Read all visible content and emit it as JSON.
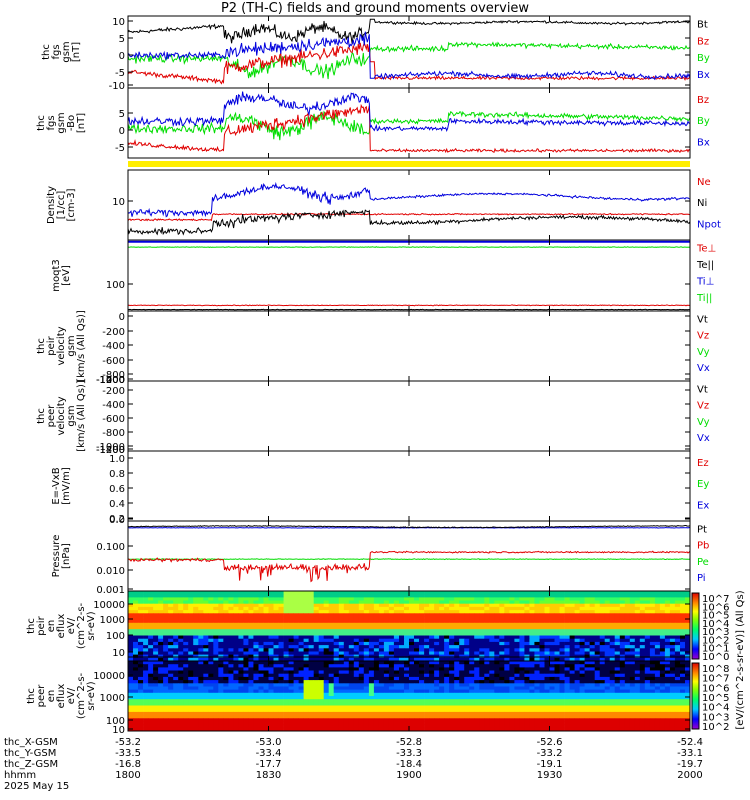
{
  "title": "P2 (TH-C) fields and ground moments overview",
  "colors": {
    "black": "#000000",
    "red": "#e00000",
    "green": "#00dd00",
    "blue": "#0000dd",
    "yellow": "#ffee00"
  },
  "chart_data": [
    {
      "type": "line",
      "id": "fgs",
      "ylabel": [
        "thc",
        "fgs",
        "gsm",
        "[nT]"
      ],
      "ylim": [
        -10,
        12
      ],
      "yticks": [
        "10",
        "5",
        "0",
        "-5",
        "-10"
      ],
      "series": [
        {
          "name": "Bt",
          "color": "#000000"
        },
        {
          "name": "Bz",
          "color": "#e00000"
        },
        {
          "name": "By",
          "color": "#00dd00"
        },
        {
          "name": "Bx",
          "color": "#0000dd"
        }
      ]
    },
    {
      "type": "line",
      "id": "fgs_dsl",
      "ylabel": [
        "thc",
        "fgs",
        "gsm",
        "-Bo",
        "[nT]"
      ],
      "ylim": [
        -9,
        10
      ],
      "yticks": [
        "5",
        "0",
        "-5"
      ],
      "series": [
        {
          "name": "Bz",
          "color": "#e00000"
        },
        {
          "name": "By",
          "color": "#00dd00"
        },
        {
          "name": "Bx",
          "color": "#0000dd"
        }
      ]
    },
    {
      "type": "line",
      "id": "density",
      "ylabel": [
        "Density",
        "[1/cc]",
        "[cm-3]"
      ],
      "ylim": "log",
      "yticks": [
        "10"
      ],
      "series": [
        {
          "name": "Ne",
          "color": "#e00000"
        },
        {
          "name": "Ni",
          "color": "#000000"
        },
        {
          "name": "Npot",
          "color": "#0000dd"
        }
      ]
    },
    {
      "type": "line",
      "id": "temp",
      "ylabel": [
        "moqt3",
        "[eV]"
      ],
      "yticks": [
        "100"
      ],
      "series": [
        {
          "name": "Te⊥",
          "color": "#e00000"
        },
        {
          "name": "Te||",
          "color": "#000000"
        },
        {
          "name": "Ti⊥",
          "color": "#0000dd"
        },
        {
          "name": "Ti||",
          "color": "#00dd00"
        }
      ]
    },
    {
      "type": "line",
      "id": "vi",
      "ylabel": [
        "thc",
        "peir",
        "velocity",
        "gsm",
        "[km/s (All Qs)]"
      ],
      "ylim": [
        -1400,
        0
      ],
      "yticks": [
        "0",
        "-200",
        "-400",
        "-600",
        "-800",
        "-1000",
        "-1200",
        "-1400"
      ],
      "series": [
        {
          "name": "Vt",
          "color": "#000000"
        },
        {
          "name": "Vz",
          "color": "#e00000"
        },
        {
          "name": "Vy",
          "color": "#00dd00"
        },
        {
          "name": "Vx",
          "color": "#0000dd"
        }
      ]
    },
    {
      "type": "line",
      "id": "ve",
      "ylabel": [
        "thc",
        "peer",
        "velocity",
        "gsm",
        "[km/s (All Qs)]"
      ],
      "ylim": [
        -1400,
        0
      ],
      "yticks": [
        "-200",
        "-400",
        "-600",
        "-800",
        "-1000",
        "-1200",
        "-1400"
      ],
      "series": [
        {
          "name": "Vt",
          "color": "#000000"
        },
        {
          "name": "Vz",
          "color": "#e00000"
        },
        {
          "name": "Vy",
          "color": "#00dd00"
        },
        {
          "name": "Vx",
          "color": "#0000dd"
        }
      ]
    },
    {
      "type": "line",
      "id": "efield",
      "ylabel": [
        "E=-VxB",
        "[mV/m]"
      ],
      "ylim": [
        -0.1,
        1.0
      ],
      "yticks": [
        "1.0",
        "0.8",
        "0.6",
        "0.4",
        "0.2",
        "0.0"
      ],
      "series": [
        {
          "name": "Ez",
          "color": "#e00000"
        },
        {
          "name": "Ey",
          "color": "#00dd00"
        },
        {
          "name": "Ex",
          "color": "#0000dd"
        }
      ]
    },
    {
      "type": "line",
      "id": "pressure",
      "ylabel": [
        "Pressure",
        "[nPa]"
      ],
      "ylim": "log",
      "yticks": [
        "0.100",
        "0.010",
        "0.001"
      ],
      "series": [
        {
          "name": "Pt",
          "color": "#000000"
        },
        {
          "name": "Pb",
          "color": "#e00000"
        },
        {
          "name": "Pe",
          "color": "#00dd00"
        },
        {
          "name": "Pi",
          "color": "#0000dd"
        }
      ]
    },
    {
      "type": "heatmap",
      "id": "ion_spec",
      "ylabel": [
        "thc",
        "peir",
        "en",
        "eflux",
        "eV/",
        "(cm^2-s-",
        "sr-eV)"
      ],
      "yticks": [
        "10000",
        "1000",
        "100",
        "10"
      ],
      "colorbar": {
        "label": "[eV/(cm^2-s-sr-eV)] (All Qs)",
        "ticks": [
          "10^7",
          "10^6",
          "10^5",
          "10^4",
          "10^3",
          "10^2",
          "10^1",
          "10^0"
        ]
      }
    },
    {
      "type": "heatmap",
      "id": "elec_spec",
      "ylabel": [
        "thc",
        "peer",
        "en",
        "eflux",
        "eV/",
        "(cm^2-s-",
        "sr-eV)"
      ],
      "yticks": [
        "10000",
        "1000",
        "100",
        "10"
      ],
      "colorbar": {
        "label": "[eV/(cm^2-s-sr-eV)] (All Qs)",
        "ticks": [
          "10^8",
          "10^7",
          "10^6",
          "10^5",
          "10^4",
          "10^3",
          "10^2"
        ]
      }
    }
  ],
  "x_axis": {
    "row_labels": [
      "thc_X-GSM",
      "thc_Y-GSM",
      "thc_Z-GSM",
      "hhmm",
      "2025 May 15"
    ],
    "ticks": [
      {
        "x": "-53.2",
        "y": "-33.5",
        "z": "-16.8",
        "hhmm": "1800"
      },
      {
        "x": "-53.0",
        "y": "-33.4",
        "z": "-17.7",
        "hhmm": "1830"
      },
      {
        "x": "-52.8",
        "y": "-33.3",
        "z": "-18.4",
        "hhmm": "1900"
      },
      {
        "x": "-52.6",
        "y": "-33.2",
        "z": "-19.1",
        "hhmm": "1930"
      },
      {
        "x": "-52.4",
        "y": "-33.1",
        "z": "-19.7",
        "hhmm": "2000"
      }
    ]
  }
}
